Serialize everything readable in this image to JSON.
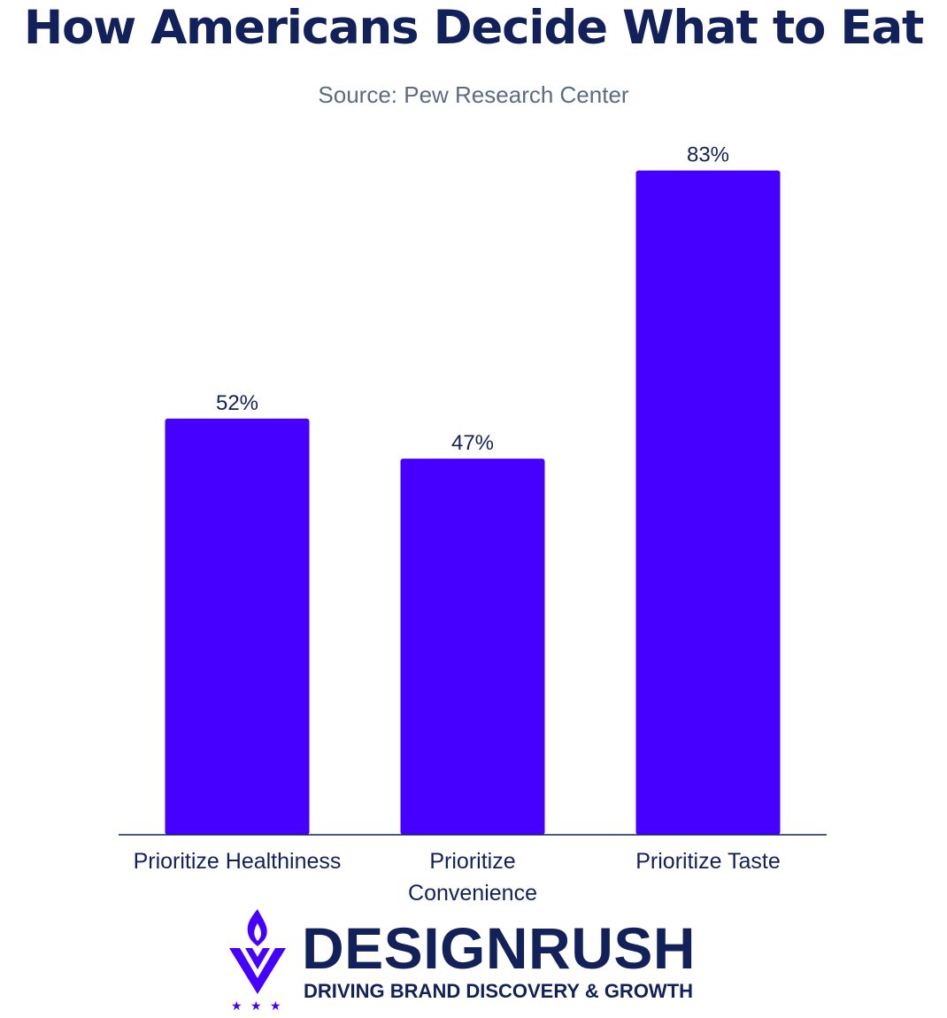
{
  "title": "How Americans Decide What to Eat",
  "subtitle": "Source: Pew Research Center",
  "colors": {
    "bar": "#4500ff",
    "text": "#13215a",
    "subtitle": "#5c6b80",
    "axis": "#13215a"
  },
  "chart_data": {
    "type": "bar",
    "title": "How Americans Decide What to Eat",
    "subtitle": "Source: Pew Research Center",
    "xlabel": "",
    "ylabel": "",
    "ylim": [
      0,
      100
    ],
    "grid": false,
    "categories": [
      [
        "Prioritize Healthiness"
      ],
      [
        "Prioritize",
        "Convenience"
      ],
      [
        "Prioritize Taste"
      ]
    ],
    "values": [
      52,
      47,
      83
    ],
    "value_labels": [
      "52%",
      "47%",
      "83%"
    ],
    "unit": "%"
  },
  "branding": {
    "name": "DESIGNRUSH",
    "tagline": "DRIVING BRAND DISCOVERY & GROWTH",
    "logo_icon": "flame-chevron-logo-icon"
  }
}
